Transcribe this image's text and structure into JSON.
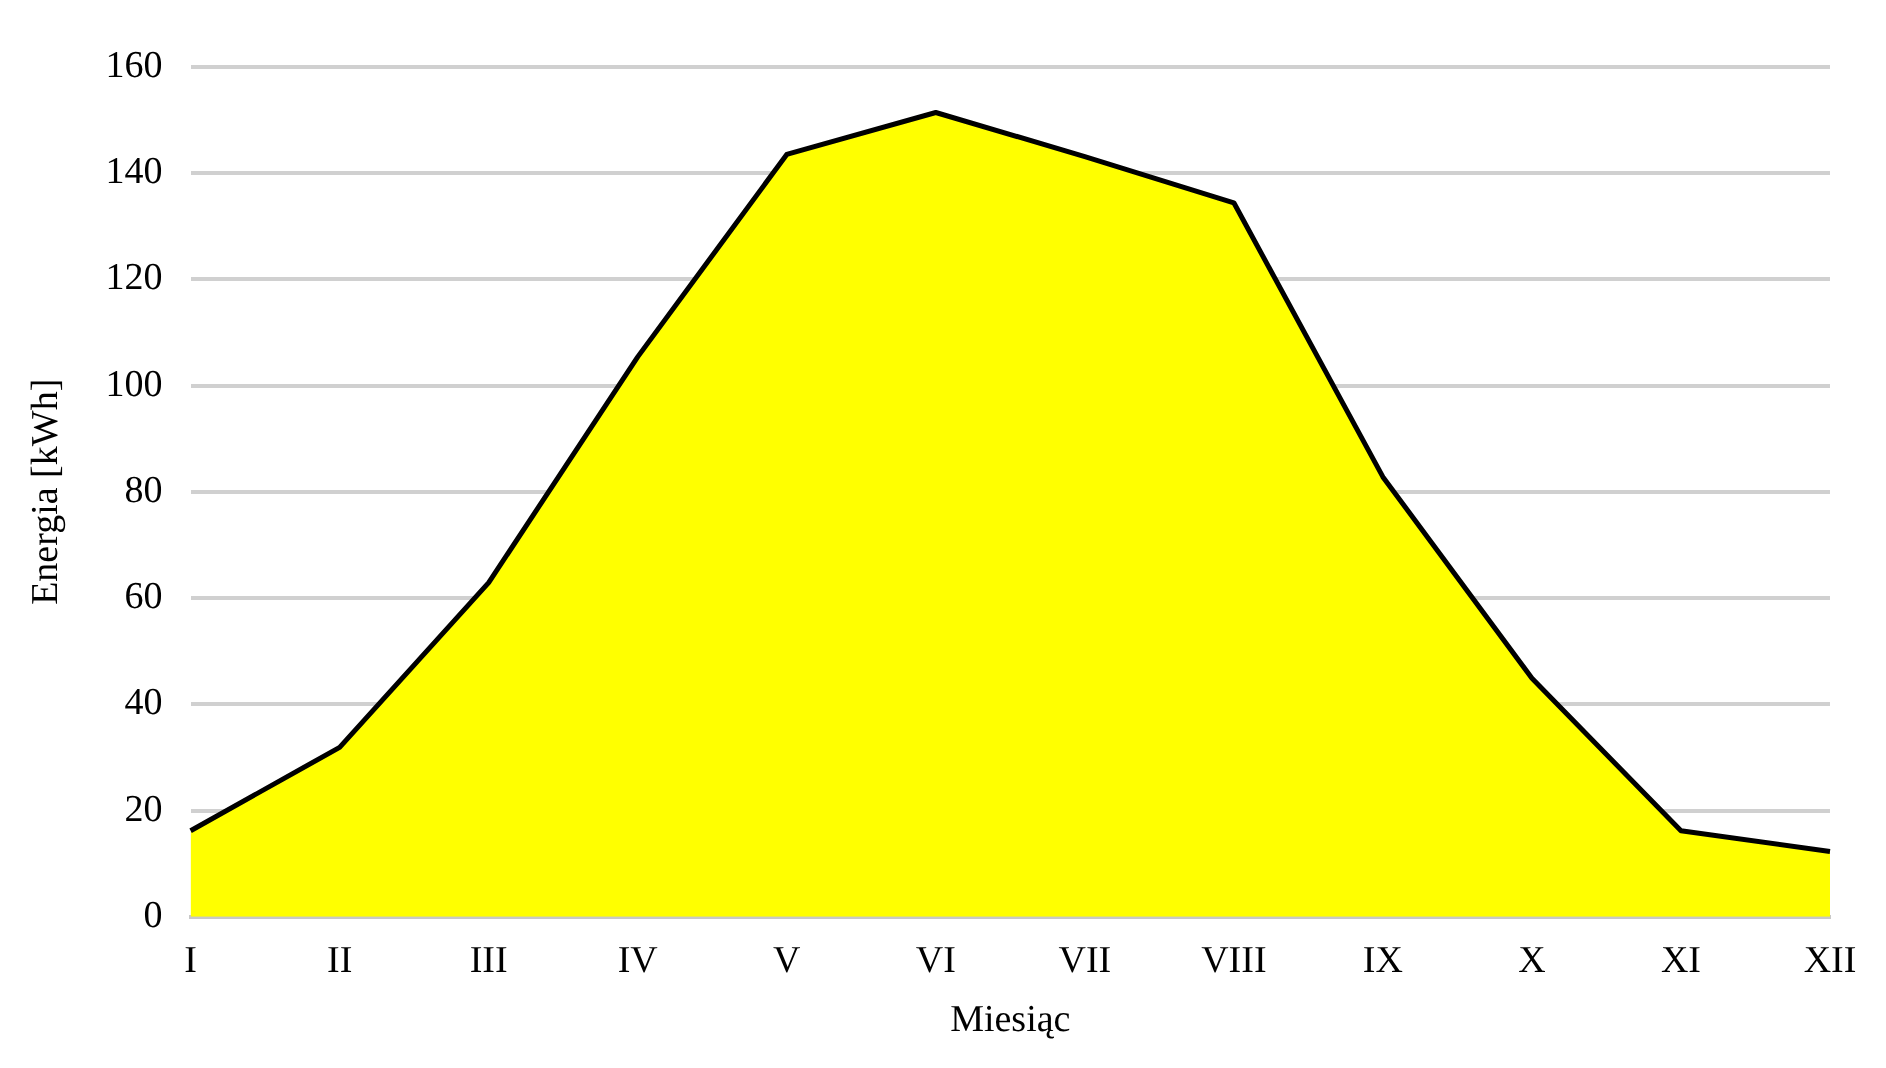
{
  "chart_data": {
    "type": "area",
    "xlabel": "Miesiąc",
    "ylabel": "Energia [kWh]",
    "categories": [
      "I",
      "II",
      "III",
      "IV",
      "V",
      "VI",
      "VII",
      "VIII",
      "IX",
      "X",
      "XI",
      "XII"
    ],
    "series": [
      {
        "color": "#ffff00",
        "values": [
          16.2,
          31.9,
          62.9,
          105.4,
          143.5,
          151.4,
          143.1,
          134.4,
          82.8,
          44.9,
          16.2,
          12.3
        ]
      }
    ],
    "ylim": [
      0,
      160
    ],
    "yticks": [
      0,
      20,
      40,
      60,
      80,
      100,
      120,
      140,
      160
    ],
    "grid": "y",
    "legend": false
  }
}
